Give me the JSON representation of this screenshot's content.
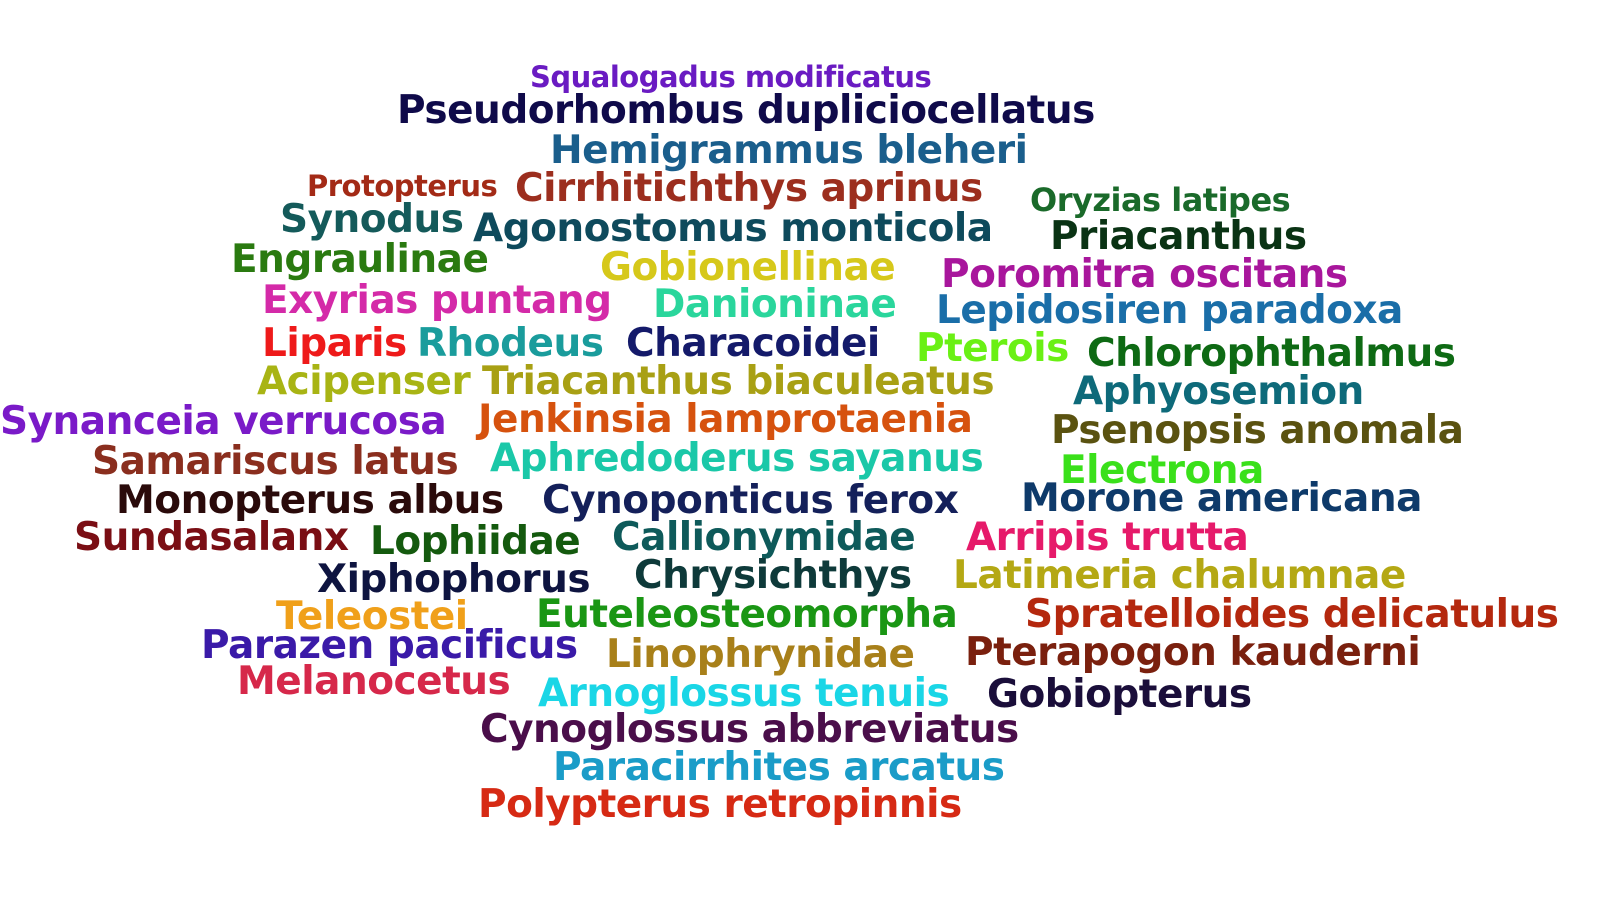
{
  "words": [
    {
      "text": "Squalogadus modificatus",
      "color": "#6a1bc2"
    },
    {
      "text": "Pseudorhombus dupliciocellatus",
      "color": "#0f0a4a"
    },
    {
      "text": "Hemigrammus bleheri",
      "color": "#1a5e8c"
    },
    {
      "text": "Protopterus",
      "color": "#a32a16"
    },
    {
      "text": "Cirrhitichthys aprinus",
      "color": "#9c2e1e"
    },
    {
      "text": "Oryzias latipes",
      "color": "#1a6a2a"
    },
    {
      "text": "Synodus",
      "color": "#145a5a"
    },
    {
      "text": "Agonostomus monticola",
      "color": "#0e4a5c"
    },
    {
      "text": "Priacanthus",
      "color": "#0a3314"
    },
    {
      "text": "Engraulinae",
      "color": "#2a7a10"
    },
    {
      "text": "Gobionellinae",
      "color": "#d6c81a"
    },
    {
      "text": "Poromitra oscitans",
      "color": "#a8169c"
    },
    {
      "text": "Exyrias puntang",
      "color": "#d42aa8"
    },
    {
      "text": "Danioninae",
      "color": "#2ad69c"
    },
    {
      "text": "Lepidosiren paradoxa",
      "color": "#1a6ea8"
    },
    {
      "text": "Liparis",
      "color": "#ee1a1a"
    },
    {
      "text": "Rhodeus",
      "color": "#1a9c9c"
    },
    {
      "text": "Characoidei",
      "color": "#141a6a"
    },
    {
      "text": "Pterois",
      "color": "#6af014"
    },
    {
      "text": "Chlorophthalmus",
      "color": "#0e6a14"
    },
    {
      "text": "Acipenser",
      "color": "#a8b414"
    },
    {
      "text": "Triacanthus biaculeatus",
      "color": "#a8a014"
    },
    {
      "text": "Aphyosemion",
      "color": "#0e6a7a"
    },
    {
      "text": "Synanceia verrucosa",
      "color": "#7a1ac8"
    },
    {
      "text": "Jenkinsia lamprotaenia",
      "color": "#d6520e"
    },
    {
      "text": "Psenopsis anomala",
      "color": "#5a5210"
    },
    {
      "text": "Samariscus latus",
      "color": "#8a2e1e"
    },
    {
      "text": "Aphredoderus sayanus",
      "color": "#1ac8a8"
    },
    {
      "text": "Electrona",
      "color": "#3ae01a"
    },
    {
      "text": "Monopterus albus",
      "color": "#2a0a0a"
    },
    {
      "text": "Cynoponticus ferox",
      "color": "#14205a"
    },
    {
      "text": "Morone americana",
      "color": "#0e3a6a"
    },
    {
      "text": "Sundasalanx",
      "color": "#7a0e14"
    },
    {
      "text": "Lophiidae",
      "color": "#145a0e"
    },
    {
      "text": "Callionymidae",
      "color": "#0e5a5a"
    },
    {
      "text": "Arripis trutta",
      "color": "#e61a6a"
    },
    {
      "text": "Xiphophorus",
      "color": "#0e1440"
    },
    {
      "text": "Chrysichthys",
      "color": "#0e3a3a"
    },
    {
      "text": "Latimeria chalumnae",
      "color": "#b4a814"
    },
    {
      "text": "Teleostei",
      "color": "#f0a01a"
    },
    {
      "text": "Euteleosteomorpha",
      "color": "#1a9614"
    },
    {
      "text": "Spratelloides delicatulus",
      "color": "#b4280e"
    },
    {
      "text": "Parazen pacificus",
      "color": "#3a1aa8"
    },
    {
      "text": "Linophrynidae",
      "color": "#a8801a"
    },
    {
      "text": "Pterapogon kauderni",
      "color": "#7a200e"
    },
    {
      "text": "Melanocetus",
      "color": "#d6284a"
    },
    {
      "text": "Arnoglossus tenuis",
      "color": "#1ad6e6"
    },
    {
      "text": "Gobiopterus",
      "color": "#1a0e3a"
    },
    {
      "text": "Cynoglossus abbreviatus",
      "color": "#4a0e4a"
    },
    {
      "text": "Paracirrhites arcatus",
      "color": "#1a9cc8"
    },
    {
      "text": "Polypterus retropinnis",
      "color": "#d62a14"
    }
  ]
}
